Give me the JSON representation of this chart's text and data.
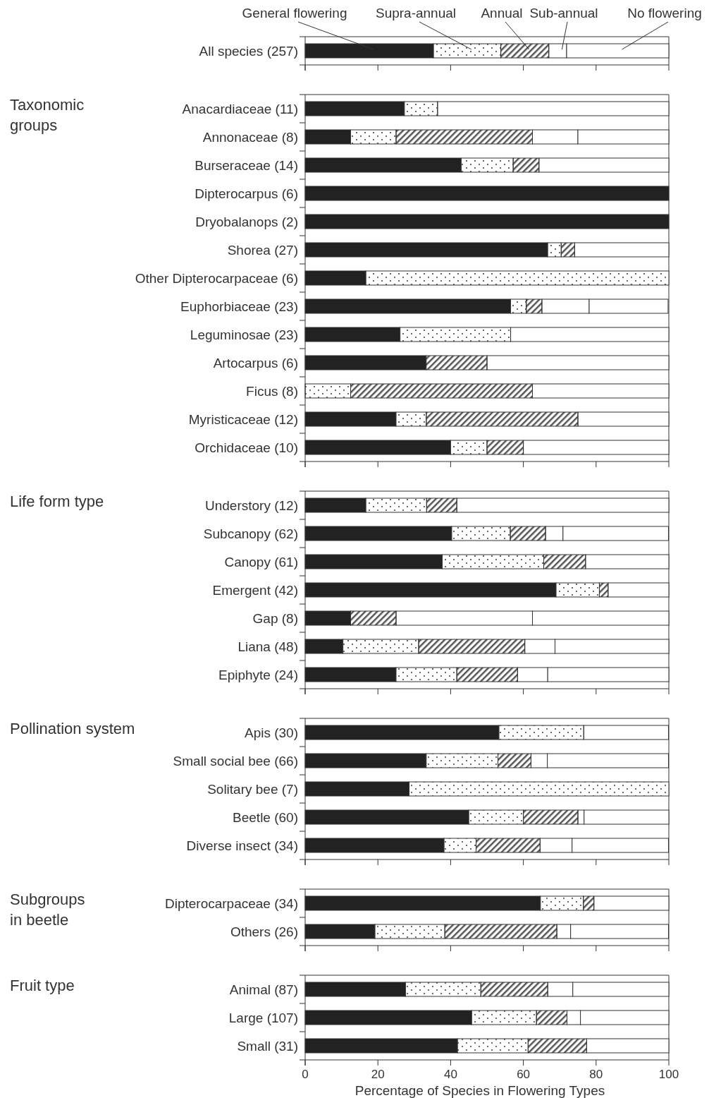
{
  "chart_data": [
    {
      "type": "bar",
      "orientation": "horizontal",
      "stacked": true,
      "legend": "top",
      "tick_labels": "y",
      "categories": [
        "All species (257)"
      ],
      "xlim": [
        0,
        100
      ],
      "xticks": [
        {
          "value": 0,
          "label": null
        },
        {
          "value": 20,
          "label": null
        },
        {
          "value": 40,
          "label": null
        },
        {
          "value": 60,
          "label": null
        },
        {
          "value": 80,
          "label": null
        },
        {
          "value": 100,
          "label": null
        }
      ],
      "series": [
        {
          "name": "General flowering",
          "color": "#222222",
          "values": [
            35.3
          ]
        },
        {
          "name": "Supra-annual",
          "color": "#ffffff",
          "values": [
            18.5
          ]
        },
        {
          "name": "Annual",
          "color": "#555555",
          "values": [
            13.2
          ]
        },
        {
          "name": "Sub-annual",
          "color": "#ffffff",
          "values": [
            4.9
          ]
        },
        {
          "name": "No flowering",
          "color": "#ffffff",
          "values": [
            28.1
          ]
        }
      ]
    },
    {
      "type": "bar",
      "orientation": "horizontal",
      "stacked": true,
      "ylabel": "Taxonomic\ngroups",
      "tick_labels": "y",
      "categories": [
        "Anacardiaceae (11)",
        "Annonaceae (8)",
        "Burseraceae (14)",
        "Dipterocarpus (6)",
        "Dryobalanops (2)",
        "Shorea (27)",
        "Other Dipterocarpaceae (6)",
        "Euphorbiaceae (23)",
        "Leguminosae (23)",
        "Artocarpus (6)",
        "Ficus (8)",
        "Myristicaceae (12)",
        "Orchidaceae (10)"
      ],
      "xlim": [
        0,
        100
      ],
      "xticks": [
        {
          "value": 0,
          "label": null
        },
        {
          "value": 20,
          "label": null
        },
        {
          "value": 40,
          "label": null
        },
        {
          "value": 60,
          "label": null
        },
        {
          "value": 80,
          "label": null
        },
        {
          "value": 100,
          "label": null
        }
      ],
      "series": [
        {
          "color": "#222222",
          "values": [
            27.3,
            12.5,
            42.9,
            100,
            100,
            66.7,
            16.7,
            56.5,
            26.1,
            33.3,
            0,
            25,
            40
          ]
        },
        {
          "color": "#ffffff",
          "values": [
            9.1,
            12.5,
            14.3,
            0,
            0,
            3.7,
            83.3,
            4.3,
            30.4,
            0,
            12.5,
            8.3,
            10
          ]
        },
        {
          "color": "#555555",
          "values": [
            0,
            37.5,
            7.1,
            0,
            0,
            3.7,
            0,
            4.3,
            0,
            16.7,
            50,
            41.7,
            10
          ]
        },
        {
          "color": "#ffffff",
          "values": [
            0,
            12.5,
            0,
            0,
            0,
            0,
            0,
            13,
            0,
            0,
            0,
            0,
            0
          ]
        },
        {
          "color": "#ffffff",
          "values": [
            63.6,
            25,
            35.7,
            0,
            0,
            25.9,
            0,
            21.7,
            43.5,
            50,
            37.5,
            25,
            40
          ]
        }
      ]
    },
    {
      "type": "bar",
      "orientation": "horizontal",
      "stacked": true,
      "ylabel": "Life form type",
      "tick_labels": "y",
      "categories": [
        "Understory (12)",
        "Subcanopy (62)",
        "Canopy (61)",
        "Emergent (42)",
        "Gap (8)",
        "Liana (48)",
        "Epiphyte (24)"
      ],
      "xlim": [
        0,
        100
      ],
      "xticks": [
        {
          "value": 0,
          "label": null
        },
        {
          "value": 20,
          "label": null
        },
        {
          "value": 40,
          "label": null
        },
        {
          "value": 60,
          "label": null
        },
        {
          "value": 80,
          "label": null
        },
        {
          "value": 100,
          "label": null
        }
      ],
      "series": [
        {
          "color": "#222222",
          "values": [
            16.7,
            40.3,
            37.7,
            69,
            12.5,
            10.4,
            25
          ]
        },
        {
          "color": "#ffffff",
          "values": [
            16.7,
            16.1,
            27.9,
            11.9,
            0,
            20.8,
            16.7
          ]
        },
        {
          "color": "#555555",
          "values": [
            8.3,
            9.7,
            11.5,
            2.4,
            12.5,
            29.2,
            16.7
          ]
        },
        {
          "color": "#ffffff",
          "values": [
            0,
            4.8,
            0,
            0,
            37.5,
            8.3,
            8.3
          ]
        },
        {
          "color": "#ffffff",
          "values": [
            58.3,
            29,
            22.9,
            16.7,
            37.5,
            31.3,
            33.3
          ]
        }
      ]
    },
    {
      "type": "bar",
      "orientation": "horizontal",
      "stacked": true,
      "ylabel": "Pollination system",
      "tick_labels": "y",
      "categories": [
        "Apis (30)",
        "Small social bee (66)",
        "Solitary bee (7)",
        "Beetle (60)",
        "Diverse insect (34)"
      ],
      "xlim": [
        0,
        100
      ],
      "xticks": [
        {
          "value": 0,
          "label": null
        },
        {
          "value": 20,
          "label": null
        },
        {
          "value": 40,
          "label": null
        },
        {
          "value": 60,
          "label": null
        },
        {
          "value": 80,
          "label": null
        },
        {
          "value": 100,
          "label": null
        }
      ],
      "series": [
        {
          "color": "#222222",
          "values": [
            53.3,
            33.3,
            28.6,
            45,
            38.2
          ]
        },
        {
          "color": "#ffffff",
          "values": [
            23.3,
            19.7,
            71.4,
            15,
            8.8
          ]
        },
        {
          "color": "#555555",
          "values": [
            0,
            9.1,
            0,
            15,
            17.6
          ]
        },
        {
          "color": "#ffffff",
          "values": [
            0,
            4.5,
            0,
            1.7,
            8.8
          ]
        },
        {
          "color": "#ffffff",
          "values": [
            23.3,
            33.3,
            0,
            23.3,
            26.5
          ]
        }
      ]
    },
    {
      "type": "bar",
      "orientation": "horizontal",
      "stacked": true,
      "ylabel": "Subgroups\nin beetle",
      "tick_labels": "y",
      "categories": [
        "Dipterocarpaceae (34)",
        "Others (26)"
      ],
      "xlim": [
        0,
        100
      ],
      "xticks": [
        {
          "value": 0,
          "label": null
        },
        {
          "value": 20,
          "label": null
        },
        {
          "value": 40,
          "label": null
        },
        {
          "value": 60,
          "label": null
        },
        {
          "value": 80,
          "label": null
        },
        {
          "value": 100,
          "label": null
        }
      ],
      "series": [
        {
          "color": "#222222",
          "values": [
            64.7,
            19.2
          ]
        },
        {
          "color": "#ffffff",
          "values": [
            11.8,
            19.2
          ]
        },
        {
          "color": "#555555",
          "values": [
            2.9,
            30.8
          ]
        },
        {
          "color": "#ffffff",
          "values": [
            0,
            3.8
          ]
        },
        {
          "color": "#ffffff",
          "values": [
            20.6,
            26.9
          ]
        }
      ]
    },
    {
      "type": "bar",
      "orientation": "horizontal",
      "stacked": true,
      "ylabel": "Fruit type",
      "xlabel": "Percentage of Species in Flowering Types",
      "categories": [
        "Animal (87)",
        "Large (107)",
        "Small (31)"
      ],
      "xlim": [
        0,
        100
      ],
      "xticks": [
        0,
        20,
        40,
        60,
        80,
        100
      ],
      "series": [
        {
          "color": "#222222",
          "values": [
            27.6,
            45.8,
            41.9
          ]
        },
        {
          "color": "#ffffff",
          "values": [
            20.7,
            17.8,
            19.4
          ]
        },
        {
          "color": "#555555",
          "values": [
            18.4,
            8.4,
            16.1
          ]
        },
        {
          "color": "#ffffff",
          "values": [
            6.9,
            3.7,
            0
          ]
        },
        {
          "color": "#ffffff",
          "values": [
            26.4,
            24.3,
            22.6
          ]
        }
      ]
    }
  ]
}
